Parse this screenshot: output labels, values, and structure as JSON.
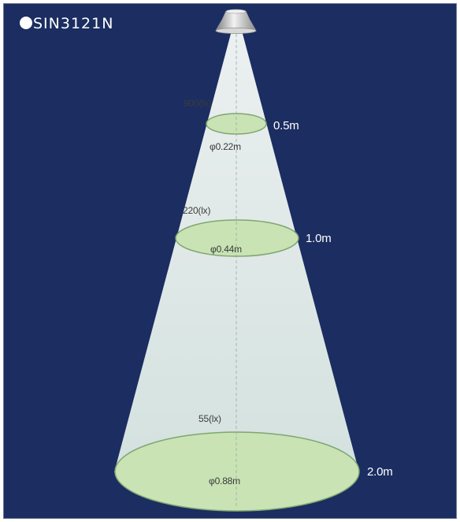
{
  "title": "SIN3121N",
  "rings": [
    {
      "distance": "0.5m",
      "diameter": "φ0.22m",
      "illuminance": "900(lx)"
    },
    {
      "distance": "1.0m",
      "diameter": "φ0.44m",
      "illuminance": "220(lx)"
    },
    {
      "distance": "2.0m",
      "diameter": "φ0.88m",
      "illuminance": "55(lx)"
    }
  ],
  "colors": {
    "background": "#1b2d61",
    "beam": "#e6f1ee",
    "ring_fill": "#c9e3b4",
    "ring_stroke": "#7fa672",
    "title_text": "#ffffff"
  }
}
